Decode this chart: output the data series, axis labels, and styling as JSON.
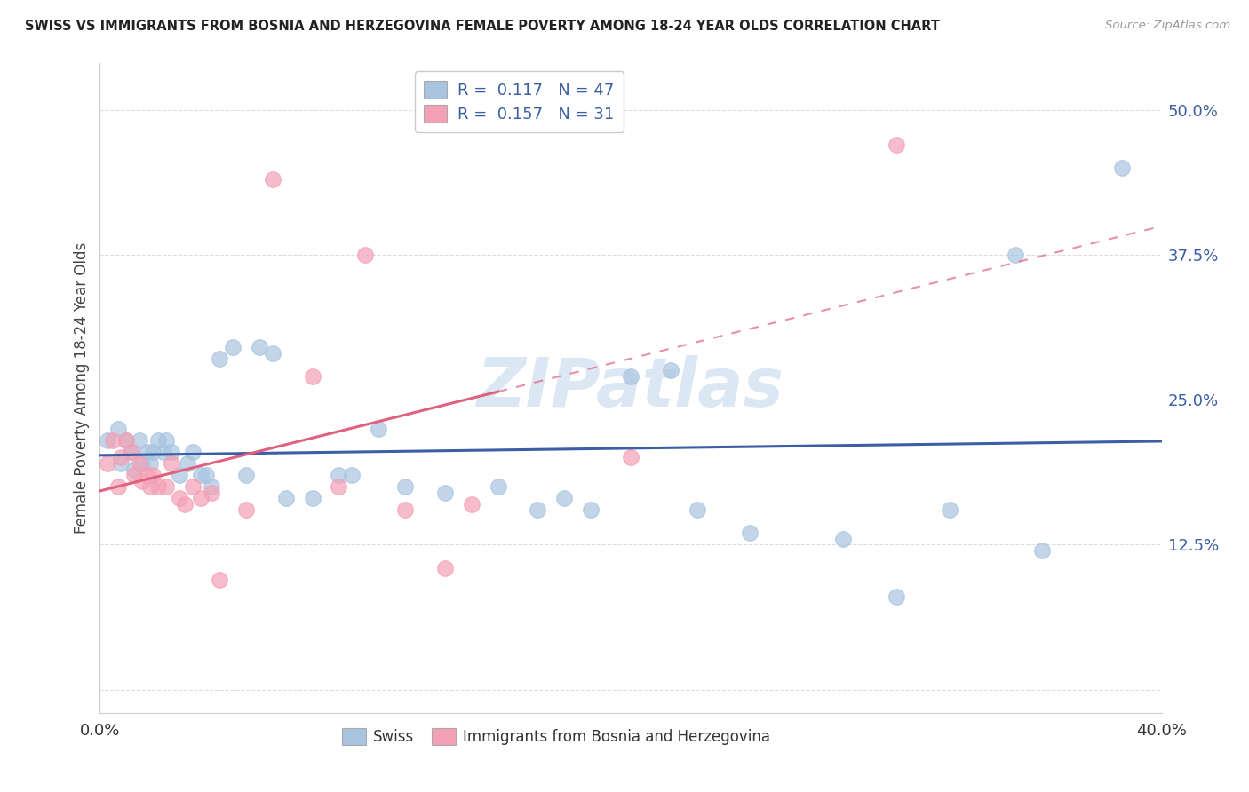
{
  "title": "SWISS VS IMMIGRANTS FROM BOSNIA AND HERZEGOVINA FEMALE POVERTY AMONG 18-24 YEAR OLDS CORRELATION CHART",
  "source": "Source: ZipAtlas.com",
  "ylabel": "Female Poverty Among 18-24 Year Olds",
  "ytick_labels": [
    "",
    "12.5%",
    "25.0%",
    "37.5%",
    "50.0%"
  ],
  "ytick_values": [
    0.0,
    0.125,
    0.25,
    0.375,
    0.5
  ],
  "xlim": [
    0.0,
    0.4
  ],
  "ylim": [
    -0.02,
    0.54
  ],
  "r_swiss": 0.117,
  "n_swiss": 47,
  "r_bosnia": 0.157,
  "n_bosnia": 31,
  "swiss_color": "#a8c4e0",
  "bosnia_color": "#f4a0b5",
  "swiss_line_color": "#3b5ea6",
  "bosnia_line_color": "#e06080",
  "legend_text_color": "#3b5ea6",
  "watermark": "ZIPatlas",
  "watermark_color": "#c5d8ee",
  "swiss_x": [
    0.003,
    0.007,
    0.008,
    0.01,
    0.012,
    0.013,
    0.015,
    0.016,
    0.018,
    0.019,
    0.02,
    0.022,
    0.024,
    0.025,
    0.027,
    0.03,
    0.033,
    0.035,
    0.038,
    0.04,
    0.042,
    0.045,
    0.05,
    0.055,
    0.06,
    0.065,
    0.07,
    0.08,
    0.09,
    0.095,
    0.105,
    0.115,
    0.13,
    0.15,
    0.165,
    0.175,
    0.185,
    0.2,
    0.215,
    0.225,
    0.245,
    0.28,
    0.3,
    0.32,
    0.345,
    0.355,
    0.385
  ],
  "swiss_y": [
    0.215,
    0.225,
    0.195,
    0.215,
    0.205,
    0.19,
    0.215,
    0.195,
    0.205,
    0.195,
    0.205,
    0.215,
    0.205,
    0.215,
    0.205,
    0.185,
    0.195,
    0.205,
    0.185,
    0.185,
    0.175,
    0.285,
    0.295,
    0.185,
    0.295,
    0.29,
    0.165,
    0.165,
    0.185,
    0.185,
    0.225,
    0.175,
    0.17,
    0.175,
    0.155,
    0.165,
    0.155,
    0.27,
    0.275,
    0.155,
    0.135,
    0.13,
    0.08,
    0.155,
    0.375,
    0.12,
    0.45
  ],
  "bosnia_x": [
    0.003,
    0.005,
    0.007,
    0.008,
    0.01,
    0.012,
    0.013,
    0.015,
    0.016,
    0.018,
    0.019,
    0.02,
    0.022,
    0.025,
    0.027,
    0.03,
    0.032,
    0.035,
    0.038,
    0.042,
    0.045,
    0.055,
    0.065,
    0.08,
    0.09,
    0.1,
    0.115,
    0.13,
    0.14,
    0.2,
    0.3
  ],
  "bosnia_y": [
    0.195,
    0.215,
    0.175,
    0.2,
    0.215,
    0.205,
    0.185,
    0.195,
    0.18,
    0.185,
    0.175,
    0.185,
    0.175,
    0.175,
    0.195,
    0.165,
    0.16,
    0.175,
    0.165,
    0.17,
    0.095,
    0.155,
    0.44,
    0.27,
    0.175,
    0.375,
    0.155,
    0.105,
    0.16,
    0.2,
    0.47
  ]
}
